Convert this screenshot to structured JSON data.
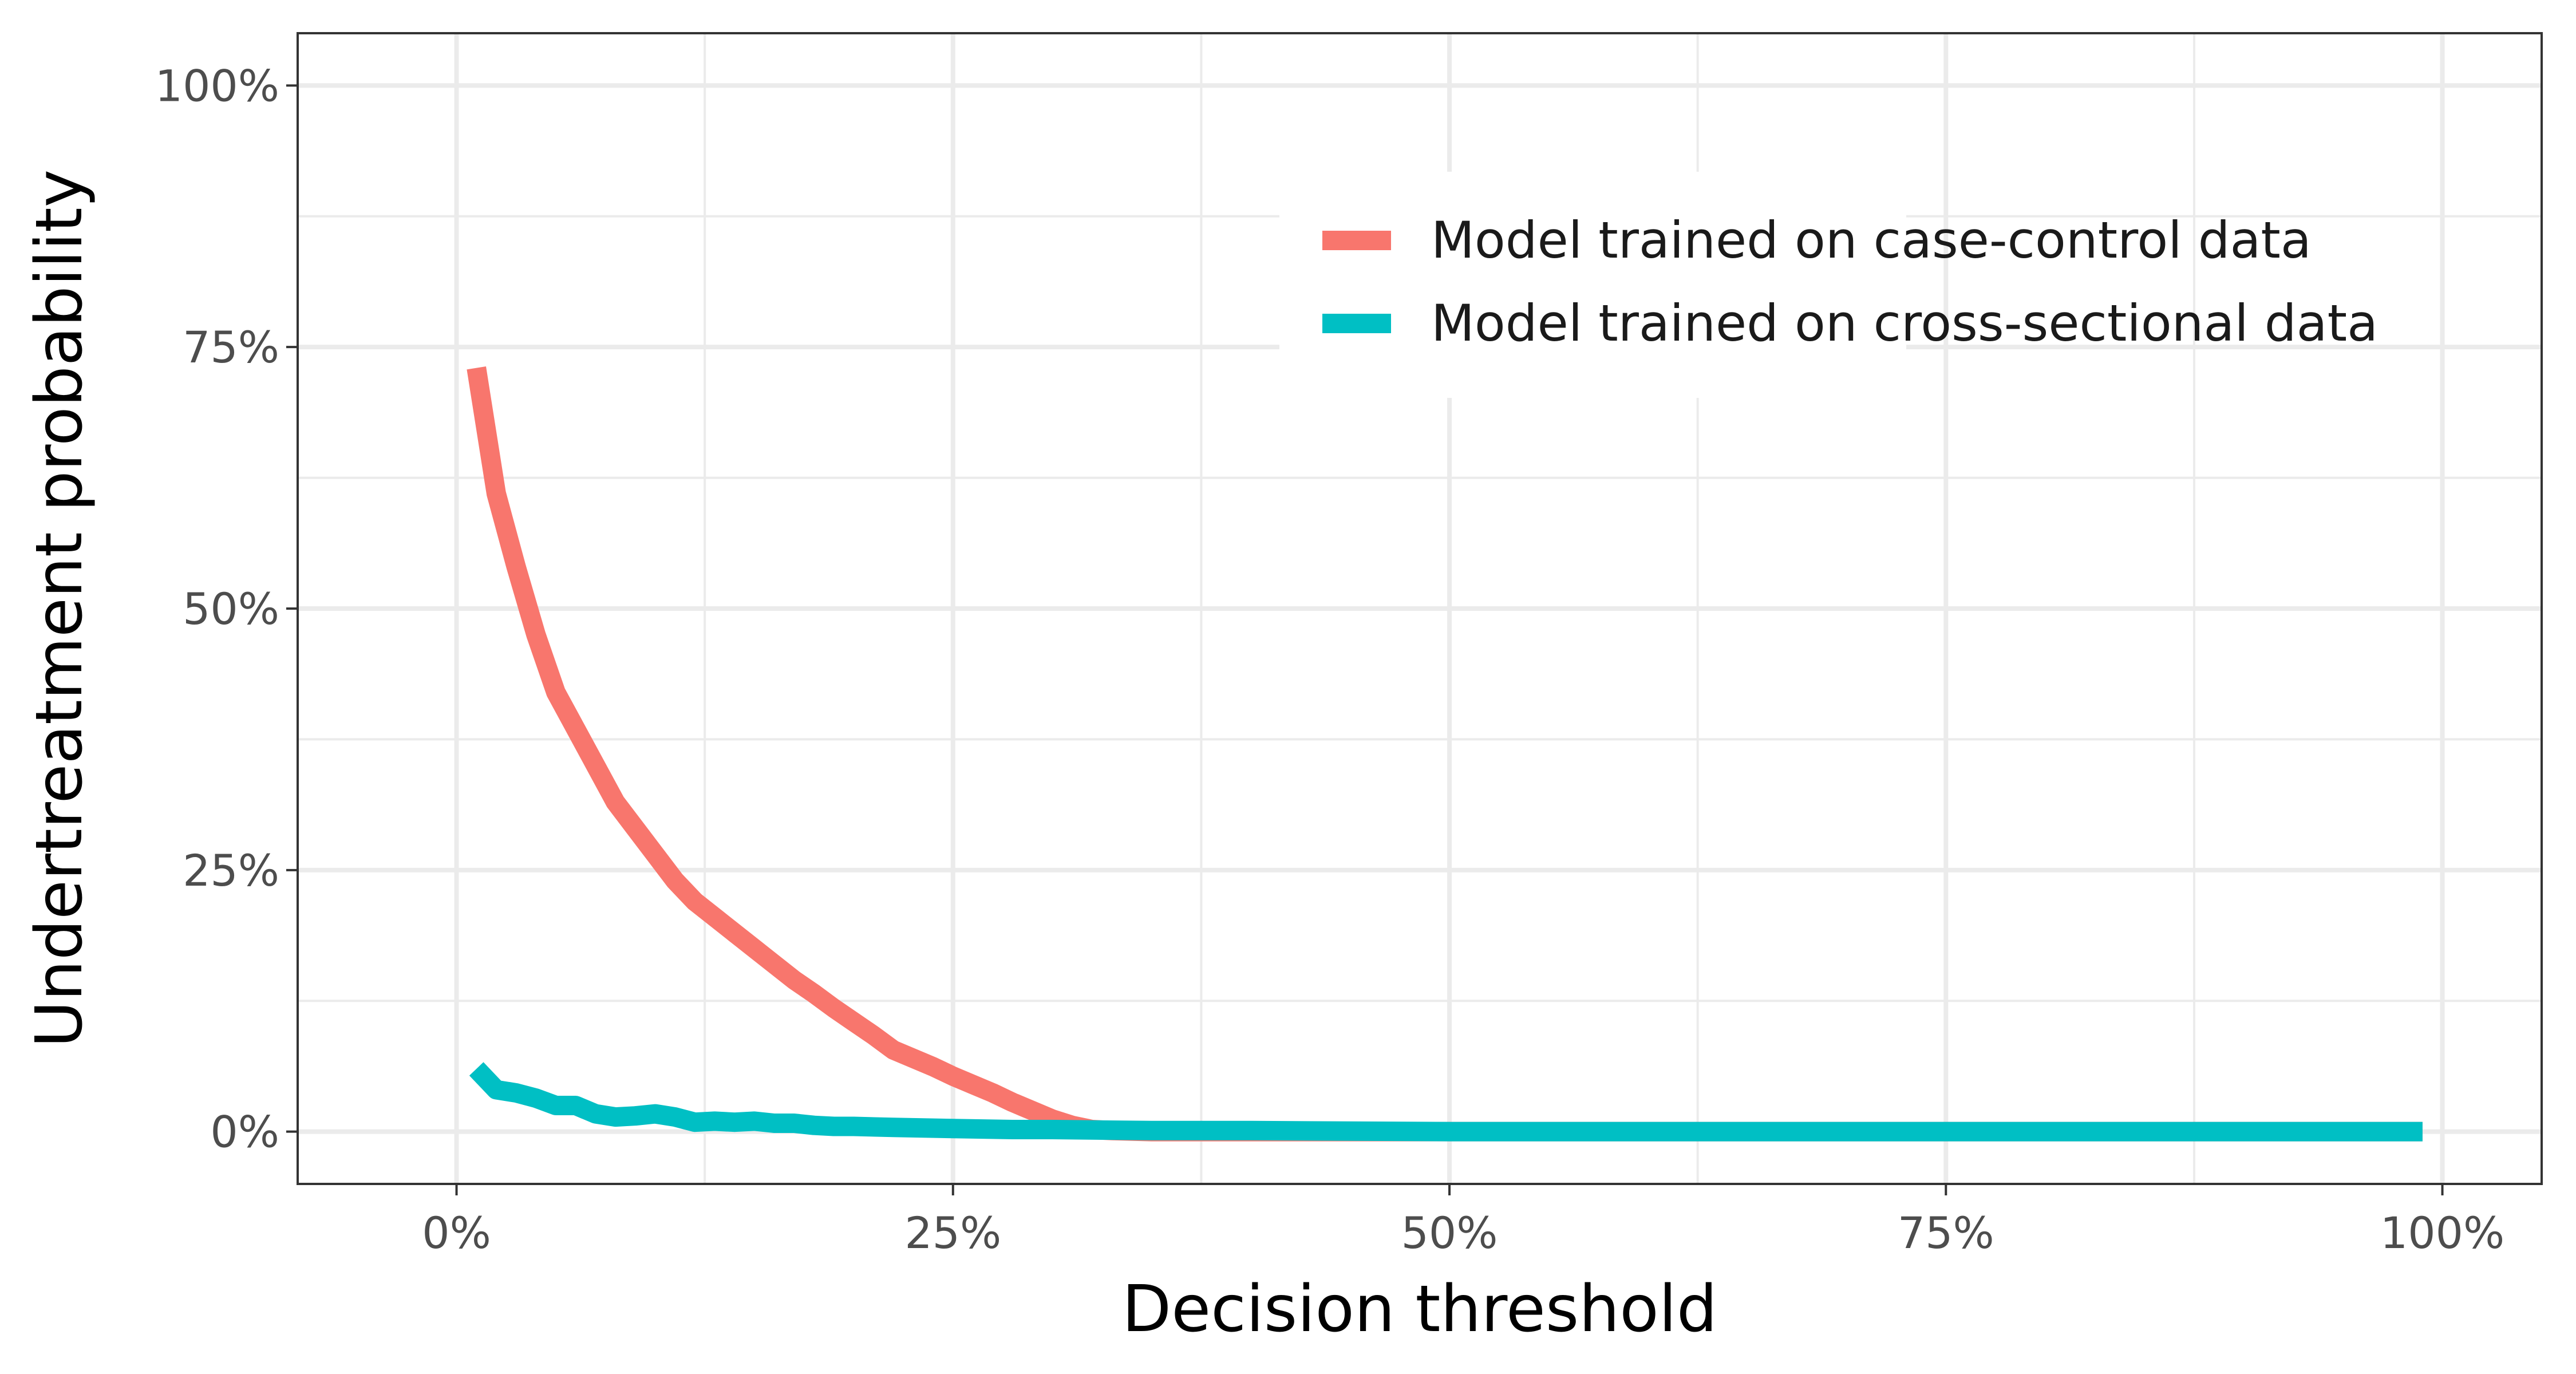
{
  "chart_data": {
    "type": "line",
    "xlabel": "Decision threshold",
    "ylabel": "Undertreatment  probability",
    "xlim": [
      -0.08,
      1.05
    ],
    "ylim": [
      -0.05,
      1.05
    ],
    "x_ticks": [
      0,
      0.25,
      0.5,
      0.75,
      1.0
    ],
    "x_tick_labels": [
      "0%",
      "25%",
      "50%",
      "75%",
      "100%"
    ],
    "y_ticks": [
      0,
      0.25,
      0.5,
      0.75,
      1.0
    ],
    "y_tick_labels": [
      "0%",
      "25%",
      "50%",
      "75%",
      "100%"
    ],
    "grid": true,
    "legend_position": "top-right",
    "series": [
      {
        "name": "Model trained on case-control data",
        "color": "#F8766D",
        "x": [
          0.01,
          0.02,
          0.03,
          0.04,
          0.05,
          0.06,
          0.07,
          0.08,
          0.09,
          0.1,
          0.11,
          0.12,
          0.13,
          0.14,
          0.15,
          0.16,
          0.17,
          0.18,
          0.19,
          0.2,
          0.21,
          0.22,
          0.23,
          0.24,
          0.25,
          0.26,
          0.27,
          0.28,
          0.29,
          0.3,
          0.31,
          0.32,
          0.33,
          0.35,
          0.4,
          0.5,
          0.6,
          0.7,
          0.8,
          0.9,
          0.99
        ],
        "y": [
          0.73,
          0.61,
          0.54,
          0.475,
          0.42,
          0.385,
          0.35,
          0.315,
          0.29,
          0.265,
          0.24,
          0.22,
          0.205,
          0.19,
          0.175,
          0.16,
          0.145,
          0.132,
          0.118,
          0.105,
          0.092,
          0.078,
          0.07,
          0.062,
          0.053,
          0.045,
          0.037,
          0.028,
          0.02,
          0.012,
          0.006,
          0.002,
          0.001,
          0.0,
          0.0,
          0.0,
          0.0,
          0.0,
          0.0,
          0.0,
          0.0
        ]
      },
      {
        "name": "Model trained on cross-sectional data",
        "color": "#00BFC4",
        "x": [
          0.01,
          0.02,
          0.03,
          0.04,
          0.05,
          0.06,
          0.07,
          0.08,
          0.09,
          0.1,
          0.11,
          0.12,
          0.13,
          0.14,
          0.15,
          0.16,
          0.17,
          0.18,
          0.19,
          0.2,
          0.22,
          0.25,
          0.28,
          0.3,
          0.35,
          0.4,
          0.5,
          0.6,
          0.7,
          0.8,
          0.9,
          0.99
        ],
        "y": [
          0.06,
          0.04,
          0.037,
          0.032,
          0.025,
          0.025,
          0.017,
          0.014,
          0.015,
          0.017,
          0.014,
          0.009,
          0.01,
          0.009,
          0.01,
          0.008,
          0.008,
          0.006,
          0.005,
          0.005,
          0.004,
          0.003,
          0.002,
          0.002,
          0.001,
          0.001,
          0.0,
          0.0,
          0.0,
          0.0,
          0.0,
          0.0
        ]
      }
    ]
  }
}
